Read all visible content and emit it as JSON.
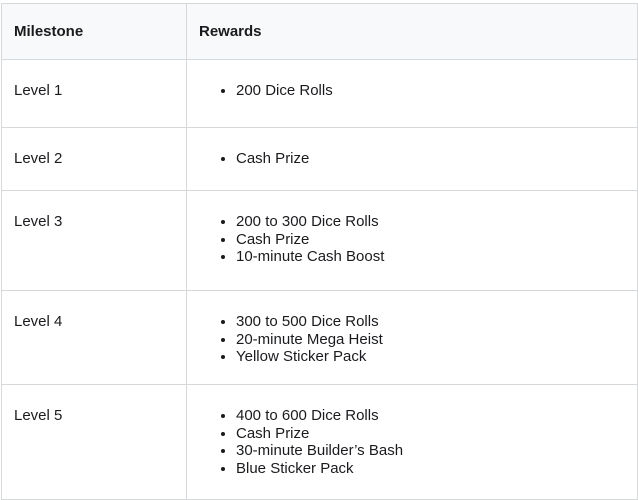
{
  "table": {
    "headers": [
      {
        "label": "Milestone"
      },
      {
        "label": "Rewards"
      }
    ],
    "rows": [
      {
        "milestone": "Level 1",
        "rewards": [
          "200 Dice Rolls"
        ]
      },
      {
        "milestone": "Level 2",
        "rewards": [
          "Cash Prize"
        ]
      },
      {
        "milestone": "Level 3",
        "rewards": [
          "200 to 300 Dice Rolls",
          "Cash Prize",
          "10-minute Cash Boost"
        ]
      },
      {
        "milestone": "Level 4",
        "rewards": [
          "300 to 500 Dice Rolls",
          "20-minute Mega Heist",
          "Yellow Sticker Pack"
        ]
      },
      {
        "milestone": "Level 5",
        "rewards": [
          "400 to 600 Dice Rolls",
          "Cash Prize",
          "30-minute Builder’s Bash",
          "Blue Sticker Pack"
        ]
      }
    ]
  },
  "colors": {
    "header_bg": "#f8f9fa",
    "border": "#d7d8da",
    "text": "#1a1b1e",
    "page_bg": "#ffffff"
  }
}
